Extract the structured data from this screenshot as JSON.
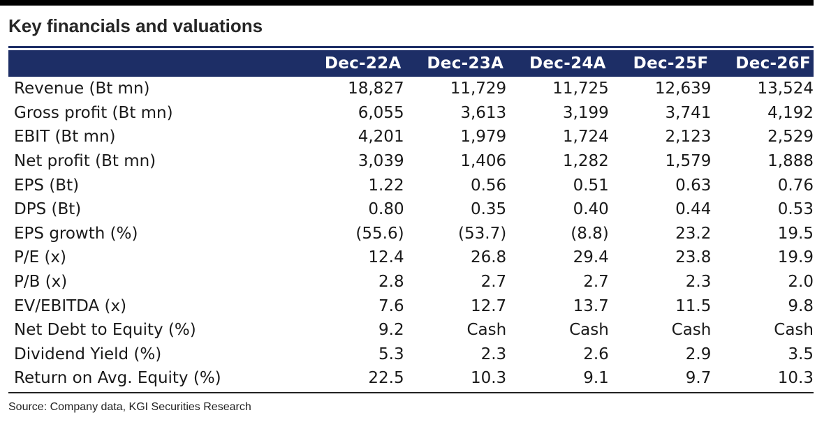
{
  "title": "Key financials and valuations",
  "header": {
    "columns": [
      "Dec-22A",
      "Dec-23A",
      "Dec-24A",
      "Dec-25F",
      "Dec-26F"
    ]
  },
  "rows": [
    {
      "label": "Revenue (Bt mn)",
      "values": [
        "18,827",
        "11,729",
        "11,725",
        "12,639",
        "13,524"
      ]
    },
    {
      "label": "Gross profit (Bt mn)",
      "values": [
        "6,055",
        "3,613",
        "3,199",
        "3,741",
        "4,192"
      ]
    },
    {
      "label": "EBIT (Bt mn)",
      "values": [
        "4,201",
        "1,979",
        "1,724",
        "2,123",
        "2,529"
      ]
    },
    {
      "label": "Net profit (Bt mn)",
      "values": [
        "3,039",
        "1,406",
        "1,282",
        "1,579",
        "1,888"
      ]
    },
    {
      "label": "EPS (Bt)",
      "values": [
        "1.22",
        "0.56",
        "0.51",
        "0.63",
        "0.76"
      ]
    },
    {
      "label": "DPS (Bt)",
      "values": [
        "0.80",
        "0.35",
        "0.40",
        "0.44",
        "0.53"
      ]
    },
    {
      "label": "EPS growth (%)",
      "values": [
        "(55.6)",
        "(53.7)",
        "(8.8)",
        "23.2",
        "19.5"
      ]
    },
    {
      "label": "P/E (x)",
      "values": [
        "12.4",
        "26.8",
        "29.4",
        "23.8",
        "19.9"
      ]
    },
    {
      "label": "P/B (x)",
      "values": [
        "2.8",
        "2.7",
        "2.7",
        "2.3",
        "2.0"
      ]
    },
    {
      "label": "EV/EBITDA (x)",
      "values": [
        "7.6",
        "12.7",
        "13.7",
        "11.5",
        "9.8"
      ]
    },
    {
      "label": "Net Debt to Equity (%)",
      "values": [
        "9.2",
        "Cash",
        "Cash",
        "Cash",
        "Cash"
      ]
    },
    {
      "label": "Dividend Yield (%)",
      "values": [
        "5.3",
        "2.3",
        "2.6",
        "2.9",
        "3.5"
      ]
    },
    {
      "label": "Return on Avg. Equity (%)",
      "values": [
        "22.5",
        "10.3",
        "9.1",
        "9.7",
        "10.3"
      ]
    }
  ],
  "source": "Source: Company data, KGI Securities Research",
  "colors": {
    "header_bg": "#1d2e66",
    "header_text": "#ffffff",
    "top_bar": "#000000"
  }
}
